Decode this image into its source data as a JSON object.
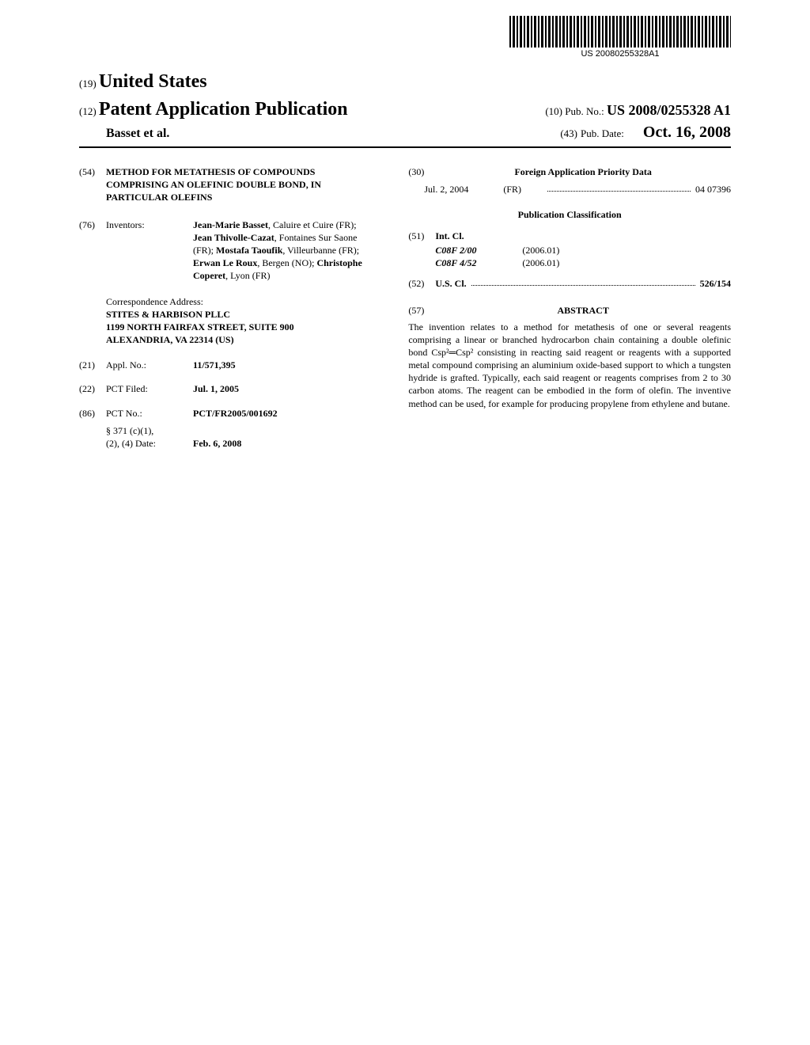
{
  "barcode_text": "US 20080255328A1",
  "header": {
    "kind19_num": "(19)",
    "country": "United States",
    "kind12_num": "(12)",
    "pub_type": "Patent Application Publication",
    "authors_line": "Basset et al.",
    "pub_no_num": "(10)",
    "pub_no_label": "Pub. No.:",
    "pub_no_value": "US 2008/0255328 A1",
    "pub_date_num": "(43)",
    "pub_date_label": "Pub. Date:",
    "pub_date_value": "Oct. 16, 2008"
  },
  "title": {
    "num": "(54)",
    "text": "METHOD FOR METATHESIS OF COMPOUNDS COMPRISING AN OLEFINIC DOUBLE BOND, IN PARTICULAR OLEFINS"
  },
  "inventors": {
    "num": "(76)",
    "label": "Inventors:",
    "value_html": "Jean-Marie Basset|, Caluire et Cuire (FR); |Jean Thivolle-Cazat|, Fontaines Sur Saone (FR); |Mostafa Taoufik|, Villeurbanne (FR); |Erwan Le Roux|, Bergen (NO); |Christophe Coperet|, Lyon (FR)"
  },
  "correspondence": {
    "label": "Correspondence Address:",
    "line1": "STITES & HARBISON PLLC",
    "line2": "1199 NORTH FAIRFAX STREET, SUITE 900",
    "line3": "ALEXANDRIA, VA 22314 (US)"
  },
  "appl_no": {
    "num": "(21)",
    "label": "Appl. No.:",
    "value": "11/571,395"
  },
  "pct_filed": {
    "num": "(22)",
    "label": "PCT Filed:",
    "value": "Jul. 1, 2005"
  },
  "pct_no": {
    "num": "(86)",
    "label": "PCT No.:",
    "value": "PCT/FR2005/001692"
  },
  "s371": {
    "label1": "§ 371 (c)(1),",
    "label2": "(2), (4) Date:",
    "value": "Feb. 6, 2008"
  },
  "foreign": {
    "num": "(30)",
    "title": "Foreign Application Priority Data",
    "date": "Jul. 2, 2004",
    "cc": "(FR)",
    "appnum": "04 07396"
  },
  "pubclass_title": "Publication Classification",
  "intcl": {
    "num": "(51)",
    "label": "Int. Cl.",
    "entries": [
      {
        "code": "C08F 2/00",
        "ver": "(2006.01)"
      },
      {
        "code": "C08F 4/52",
        "ver": "(2006.01)"
      }
    ]
  },
  "uscl": {
    "num": "(52)",
    "label": "U.S. Cl.",
    "value": "526/154"
  },
  "abstract": {
    "num": "(57)",
    "title": "ABSTRACT",
    "body": "The invention relates to a method for metathesis of one or several reagents comprising a linear or branched hydrocarbon chain containing a double olefinic bond Csp²═Csp² consisting in reacting said reagent or reagents with a supported metal compound comprising an aluminium oxide-based support to which a tungsten hydride is grafted. Typically, each said reagent or reagents comprises from 2 to 30 carbon atoms. The reagent can be embodied in the form of olefin. The inventive method can be used, for example for producing propylene from ethylene and butane."
  }
}
